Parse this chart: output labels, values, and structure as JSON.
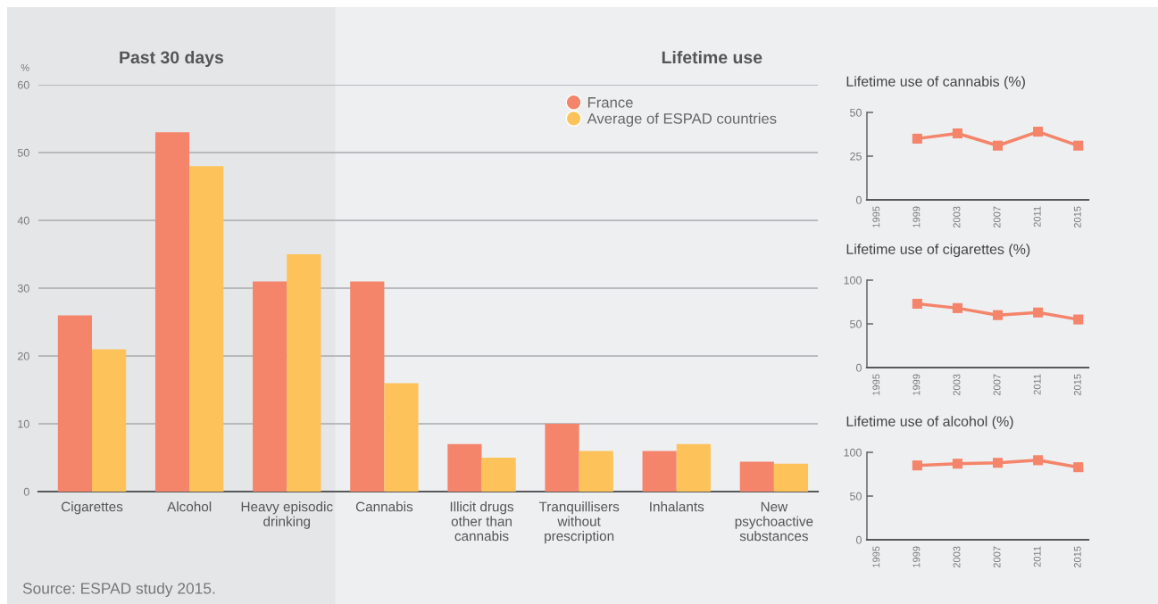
{
  "chart_data": [
    {
      "type": "bar",
      "ylabel": "%",
      "categories": [
        "Cigarettes",
        "Alcohol",
        "Heavy episodic\ndrinking",
        "Cannabis",
        "Illicit drugs\nother than\ncannabis",
        "Tranquillisers\nwithout\nprescription",
        "Inhalants",
        "New\npsychoactive\nsubstances"
      ],
      "series": [
        {
          "name": "France",
          "color": "#f4846a",
          "values": [
            26,
            53,
            31,
            31,
            7,
            10,
            6,
            4.4
          ]
        },
        {
          "name": "Average of ESPAD countries",
          "color": "#fdc35a",
          "values": [
            21,
            48,
            35,
            16,
            5,
            6,
            7,
            4.1
          ]
        }
      ],
      "ylim": [
        0,
        60
      ],
      "yticks": [
        0,
        10,
        20,
        30,
        40,
        50,
        60
      ],
      "grid": "y",
      "legend": "top right",
      "bands": [
        {
          "axis": "x",
          "from": "Cigarettes",
          "to": "Heavy episodic\ndrinking",
          "label": "Past 30 days",
          "color": "#e5e6e8"
        },
        {
          "axis": "x",
          "from": "Cannabis",
          "to": "New\npsychoactive\nsubstances",
          "label": "Lifetime use",
          "color": "#eeeff1"
        }
      ],
      "annotations": [
        "Source: ESPAD study 2015."
      ]
    },
    {
      "type": "line",
      "title": "Lifetime use of cannabis (%)",
      "x": [
        1999,
        2003,
        2007,
        2011,
        2015
      ],
      "series": [
        {
          "color": "#f4846a",
          "values": [
            35,
            38,
            31,
            39,
            31
          ]
        }
      ],
      "xlim": [
        1994,
        2016
      ],
      "xticks": [
        1995,
        1999,
        2003,
        2007,
        2011,
        2015
      ],
      "ylim": [
        0,
        50
      ],
      "yticks": [
        0,
        25,
        50
      ],
      "marker": "square",
      "line_style": "solid"
    },
    {
      "type": "line",
      "title": "Lifetime use of cigarettes (%)",
      "x": [
        1999,
        2003,
        2007,
        2011,
        2015
      ],
      "series": [
        {
          "color": "#f4846a",
          "values": [
            73,
            68,
            60,
            63,
            55
          ]
        }
      ],
      "xlim": [
        1994,
        2016
      ],
      "xticks": [
        1995,
        1999,
        2003,
        2007,
        2011,
        2015
      ],
      "ylim": [
        0,
        100
      ],
      "yticks": [
        0,
        50,
        100
      ],
      "marker": "square",
      "line_style": "solid"
    },
    {
      "type": "line",
      "title": "Lifetime use of alcohol (%)",
      "x": [
        1999,
        2003,
        2007,
        2011,
        2015
      ],
      "series": [
        {
          "color": "#f4846a",
          "values": [
            85,
            87,
            88,
            91,
            83
          ]
        }
      ],
      "xlim": [
        1994,
        2016
      ],
      "xticks": [
        1995,
        1999,
        2003,
        2007,
        2011,
        2015
      ],
      "ylim": [
        0,
        100
      ],
      "yticks": [
        0,
        50,
        100
      ],
      "marker": "square",
      "line_style": "solid"
    }
  ]
}
